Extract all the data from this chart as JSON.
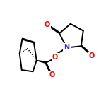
{
  "bg": "#ffffff",
  "bc": "#000000",
  "nc": "#3333cc",
  "oc": "#ff0000",
  "lw": 1.4,
  "fs": 7.0,
  "xlim": [
    0,
    10
  ],
  "ylim": [
    0,
    10
  ]
}
